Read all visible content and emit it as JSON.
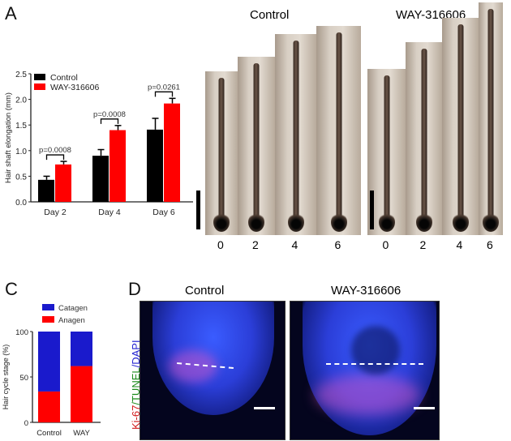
{
  "panels": {
    "a": "A",
    "c": "C",
    "d": "D"
  },
  "chart_data": [
    {
      "type": "bar",
      "title": "",
      "ylabel": "Hair shaft elongation (mm)",
      "xlabel": "",
      "ylim": [
        0,
        2.5
      ],
      "yticks": [
        "0.0",
        "0.5",
        "1.0",
        "1.5",
        "2.0",
        "2.5"
      ],
      "categories": [
        "Day 2",
        "Day 4",
        "Day 6"
      ],
      "series": [
        {
          "name": "Control",
          "color": "#000000",
          "values": [
            0.43,
            0.9,
            1.41
          ],
          "errors": [
            0.07,
            0.12,
            0.22
          ]
        },
        {
          "name": "WAY-316606",
          "color": "#ff0000",
          "values": [
            0.73,
            1.4,
            1.92
          ],
          "errors": [
            0.06,
            0.09,
            0.1
          ]
        }
      ],
      "annotations": [
        "p=0.0008",
        "p=0.0008",
        "p=0.0261"
      ],
      "legend": "top-left"
    },
    {
      "type": "bar",
      "stacked": true,
      "ylabel": "Hair cycle stage (%)",
      "ylim": [
        0,
        100
      ],
      "yticks": [
        "0",
        "50",
        "100"
      ],
      "categories": [
        "Control",
        "WAY"
      ],
      "series": [
        {
          "name": "Anagen",
          "color": "#ff0000",
          "values": [
            34,
            62
          ]
        },
        {
          "name": "Catagen",
          "color": "#1a1acc",
          "values": [
            66,
            38
          ]
        }
      ],
      "legend": "top"
    }
  ],
  "photos": {
    "control_title": "Control",
    "way_title": "WAY-316606",
    "days": [
      "0",
      "2",
      "4",
      "6"
    ]
  },
  "fluorescence": {
    "control_title": "Control",
    "way_title": "WAY-316606",
    "stain": {
      "ki67": "Ki-67",
      "tunel": "TUNEL",
      "dapi": "DAPI"
    }
  }
}
